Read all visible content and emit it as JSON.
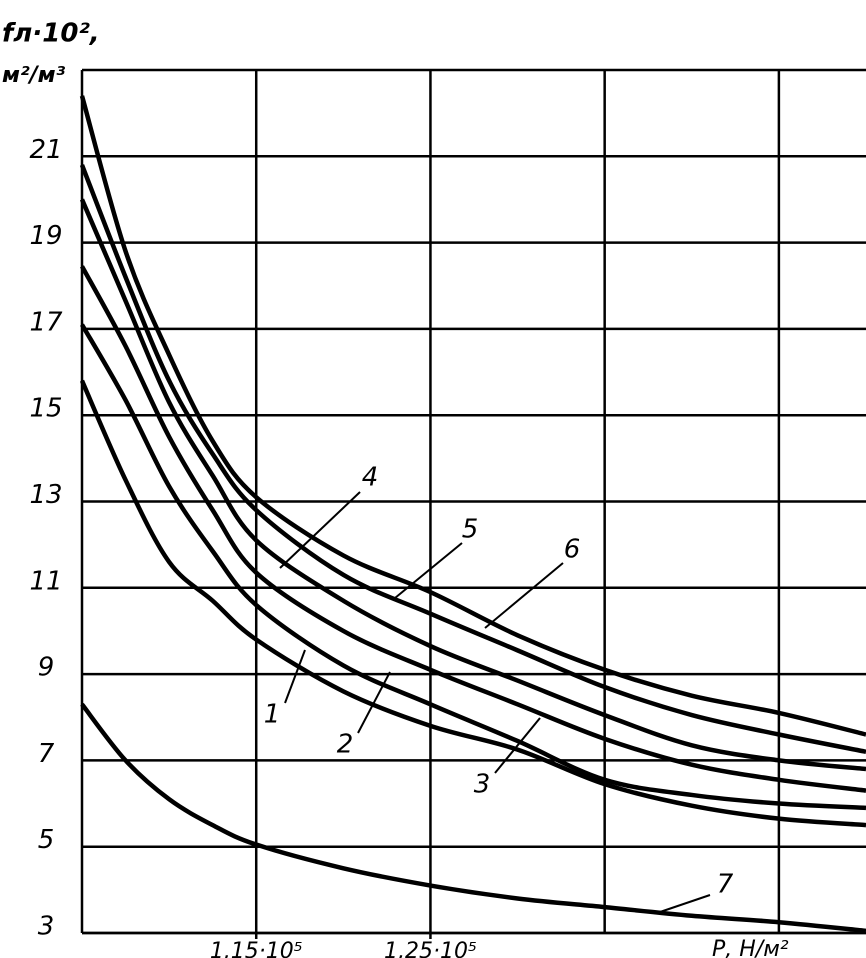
{
  "chart_data": {
    "type": "line",
    "ylabel": [
      "fл·10²,",
      "м²/м³"
    ],
    "xlabel": "Р, Н/м²",
    "x": [
      105000,
      107500,
      110000,
      112500,
      115000,
      120000,
      125000,
      130000,
      135000,
      140000,
      145000,
      150000
    ],
    "series": [
      {
        "name": "1",
        "color": "#000000",
        "values": [
          15.8,
          13.5,
          11.6,
          10.7,
          9.8,
          8.6,
          7.8,
          7.25,
          6.45,
          5.95,
          5.65,
          5.5
        ]
      },
      {
        "name": "2",
        "color": "#000000",
        "values": [
          17.1,
          15.35,
          13.35,
          11.85,
          10.6,
          9.2,
          8.3,
          7.45,
          6.55,
          6.2,
          6.0,
          5.9
        ]
      },
      {
        "name": "3",
        "color": "#000000",
        "values": [
          18.45,
          16.6,
          14.5,
          12.8,
          11.35,
          10.0,
          9.1,
          8.3,
          7.5,
          6.9,
          6.55,
          6.3
        ]
      },
      {
        "name": "4",
        "color": "#000000",
        "values": [
          20.0,
          17.65,
          15.3,
          13.6,
          12.1,
          10.7,
          9.65,
          8.85,
          8.05,
          7.35,
          7.0,
          6.8
        ]
      },
      {
        "name": "5",
        "color": "#000000",
        "values": [
          20.8,
          18.2,
          15.8,
          14.1,
          12.8,
          11.3,
          10.4,
          9.55,
          8.7,
          8.05,
          7.6,
          7.2
        ]
      },
      {
        "name": "6",
        "color": "#000000",
        "values": [
          22.4,
          18.8,
          16.4,
          14.4,
          13.1,
          11.75,
          10.9,
          9.9,
          9.1,
          8.5,
          8.1,
          7.6
        ]
      },
      {
        "name": "7",
        "color": "#000000",
        "values": [
          8.3,
          7.0,
          6.1,
          5.5,
          5.05,
          4.5,
          4.1,
          3.8,
          3.6,
          3.4,
          3.25,
          3.05
        ]
      }
    ],
    "xlim": [
      105000,
      150000
    ],
    "xticks": [
      {
        "value": 115000,
        "label": "1,15·10⁵"
      },
      {
        "value": 125000,
        "label": "1,25·10⁵"
      }
    ],
    "xgrid": [
      115000,
      125000,
      135000,
      145000
    ],
    "ylim": [
      3,
      23
    ],
    "yticks": [
      3,
      5,
      7,
      9,
      11,
      13,
      15,
      17,
      19,
      21
    ],
    "grid": true
  }
}
